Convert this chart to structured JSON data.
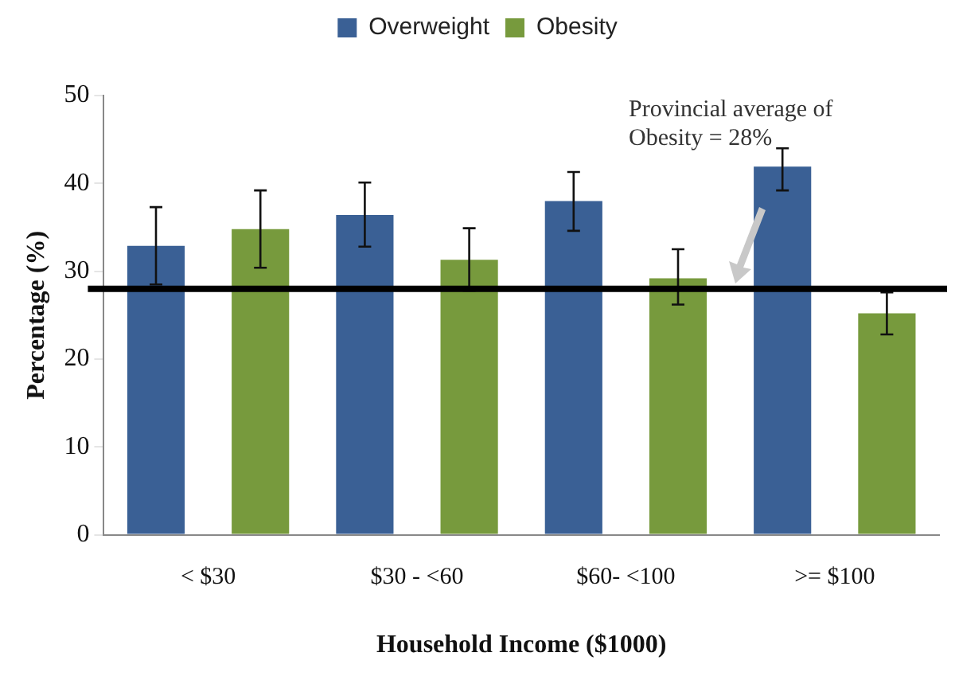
{
  "chart_data": {
    "type": "bar",
    "xlabel": "Household Income ($1000)",
    "ylabel": "Percentage (%)",
    "categories": [
      "< $30",
      "$30 - <60",
      "$60- <100",
      ">= $100"
    ],
    "series": [
      {
        "name": "Overweight",
        "color": "#3a6095",
        "values": [
          32.9,
          36.4,
          38.0,
          41.9
        ],
        "errors": [
          [
            28.5,
            37.3
          ],
          [
            32.8,
            40.1
          ],
          [
            34.6,
            41.3
          ],
          [
            39.2,
            44.0
          ]
        ]
      },
      {
        "name": "Obesity",
        "color": "#779a3d",
        "values": [
          34.8,
          31.3,
          29.2,
          25.2
        ],
        "errors": [
          [
            30.4,
            39.2
          ],
          [
            27.8,
            34.9
          ],
          [
            26.2,
            32.5
          ],
          [
            22.8,
            27.6
          ]
        ]
      }
    ],
    "ylim": [
      0,
      50
    ],
    "yticks": [
      0,
      10,
      20,
      30,
      40,
      50
    ],
    "grid": false,
    "legend": "top",
    "ref_lines": [
      {
        "axis": "y",
        "value": 28,
        "color": "#000000"
      }
    ],
    "annotations": [
      "Provincial average of Obesity = 28%"
    ]
  }
}
